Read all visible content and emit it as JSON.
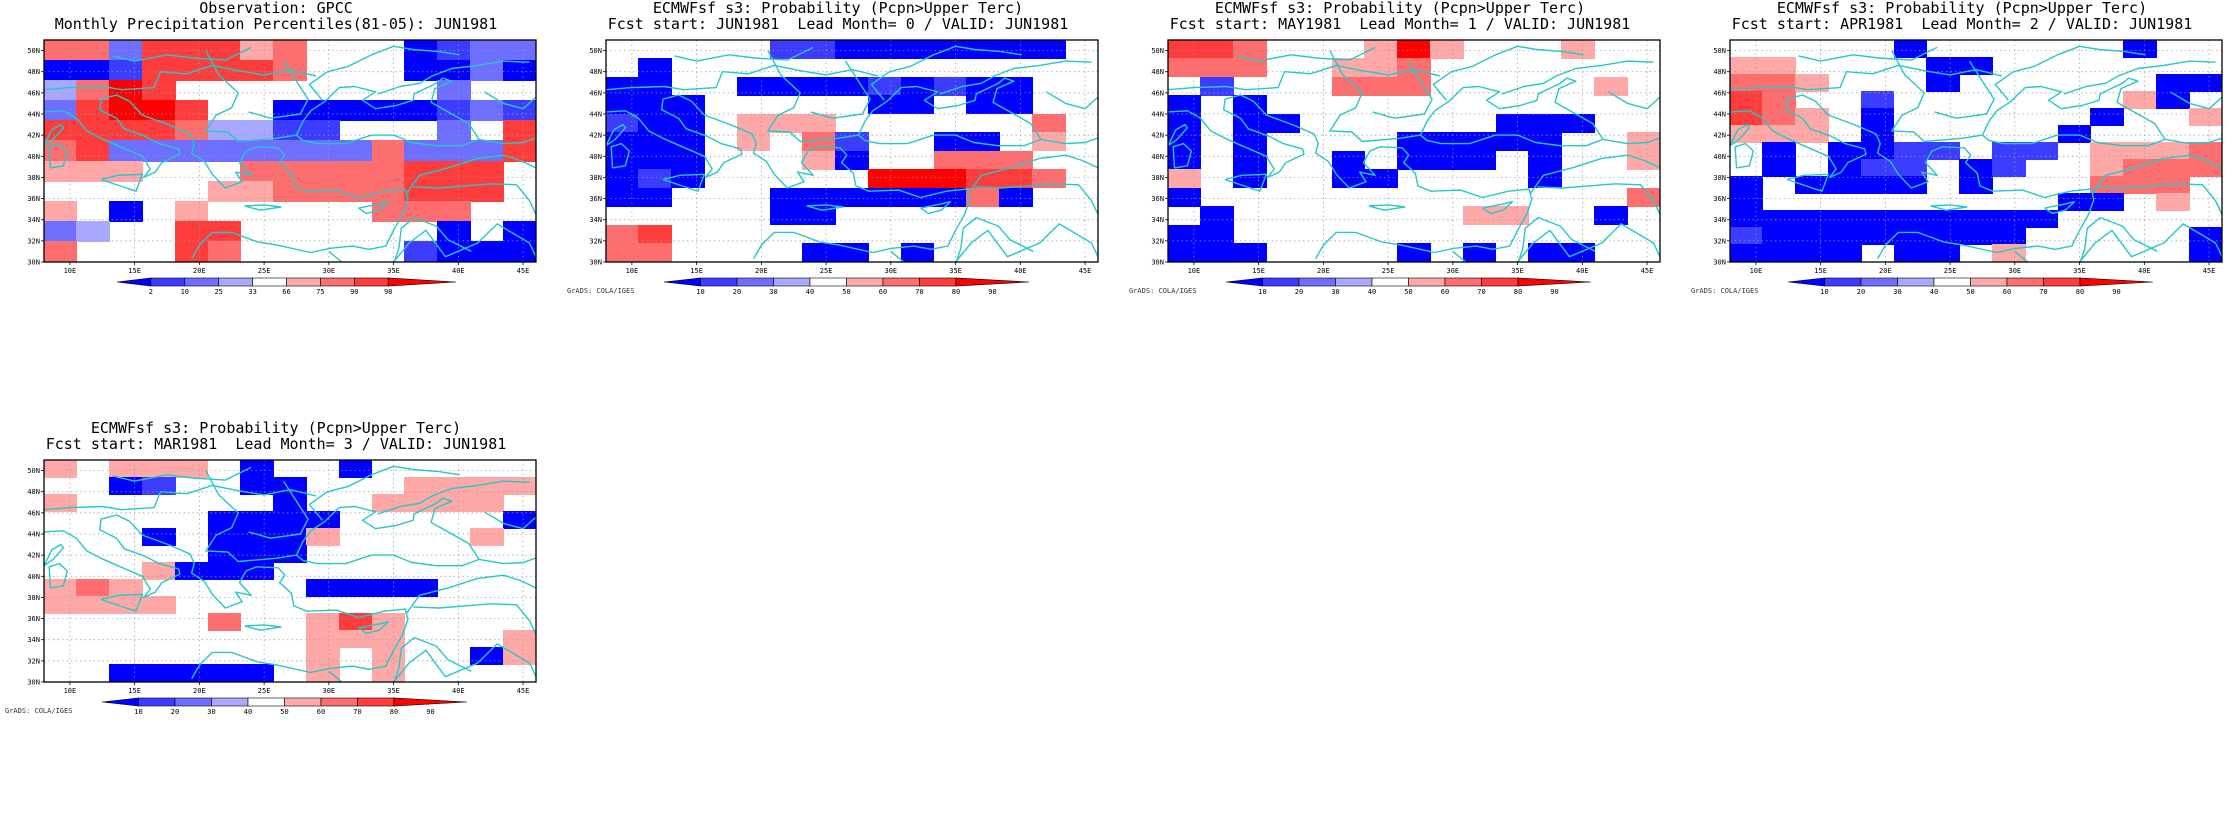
{
  "credit": "GrADS: COLA/IGES",
  "axes": {
    "lon_ticks": [
      "10E",
      "15E",
      "20E",
      "25E",
      "30E",
      "35E",
      "40E",
      "45E"
    ],
    "lat_ticks": [
      "30N",
      "32N",
      "34N",
      "36N",
      "38N",
      "40N",
      "42N",
      "44N",
      "46N",
      "48N",
      "50N"
    ],
    "lon_range": [
      8,
      46
    ],
    "lat_range": [
      30,
      51
    ]
  },
  "colors": {
    "coast": "#25c8c8",
    "grid": "#9a9a9a",
    "blue": [
      "#0000ff",
      "#3c3cff",
      "#6e6eff",
      "#a8a8ff"
    ],
    "red": [
      "#ffa8a8",
      "#ff6e6e",
      "#ff3c3c",
      "#ff0000"
    ]
  },
  "legends": {
    "obs": [
      "2",
      "10",
      "25",
      "33",
      "66",
      "75",
      "90",
      "98"
    ],
    "prob": [
      "10",
      "20",
      "30",
      "40",
      "50",
      "60",
      "70",
      "80",
      "90"
    ]
  },
  "panels": [
    {
      "id": "obs",
      "title1": "Observation: GPCC",
      "title2": "Monthly Precipitation Percentiles(81-05): JUN1981",
      "legend": "obs",
      "credit": false,
      "grid": [
        "r2  r2  b3  r3  r3  r3  r1  r2  .   .   .   b1  b2  b3  b3",
        "b1  b1  b2  r3  r3  r3  r3  r2  .   .   .   b1  b1  b3  b1",
        "b4  r2  r4  r3  .   .   .   .   .   .   .   .   b3  .   .",
        "b3  r3  r4  r4  r3  .   .   b1  b1  b1  b1  b1  b2  b3  b2",
        "r3  r3  r3  r3  r2  b4  b4  b2  b2  .   .   .   b3  .   r3",
        "r2  r3  b3  b3  b3  b3  b3  b3  b3  b3  r2  b3  b3  b3  r3",
        "r1  r1  r1  .   .   .   r2  r2  r2  r2  r2  r3  r3  r3  .",
        ".   .   .   .   .   r1  r1  r2  r2  r2  r2  r3  r3  r3  .",
        "r1  .   b1  .   r1  .   .   .   .   .   r2  r2  r2  .   .",
        "b3  b4  .   .   r3  r3  .   .   .   .   .   .   b1  .   b1",
        "r2  .   .   .   r3  r2  .   .   .   .   .   b2  b1  b1  b1"
      ]
    },
    {
      "id": "lead0",
      "title1": "ECMWFsf s3: Probability (Pcpn>Upper Terc)",
      "title2": "Fcst start: JUN1981  Lead Month= 0 / VALID: JUN1981",
      "legend": "prob",
      "credit": true,
      "grid": [
        ".   .   .   .   .   b2  b2  b1  b1  b1  b1  b1  b1  b1  .",
        ".   b1  .   .   .   .   .   .   .   .   .   .   .   .   .",
        "b1  b1  .   .   b1  b1  b1  b1  b2  b1  b2  b1  b1  .   .",
        "b1  b1  b1  .   .   .   .   .   b1  b1  .   b1  b1  .   .",
        "b2  b1  b1  .   r1  r1  r1  .   .   .   .   .   .   r2  .",
        "b1  b1  b1  .   r1  .   r2  b2  .   .   b1  b1  .   r1  .",
        "b1  b1  b1  .   .   .   r1  b1  .   .   r2  r2  r2  .   .",
        "b1  b2  b1  .   .   .   .   .   r4  r4  r4  r3  r3  r2  .",
        "b1  b1  .   .   .   b1  b1  b1  b1  b1  b1  r2  b1  .   .",
        ".   .   .   .   .   b1  b1  .   .   .   .   .   .   .   .",
        "r2  r3  .   .   .   .   .   .   .   .   .   .   .   .   .",
        "r2  r2  .   .   .   .   b1  b1  .   b1  .   .   .   .   ."
      ]
    },
    {
      "id": "lead1",
      "title1": "ECMWFsf s3: Probability (Pcpn>Upper Terc)",
      "title2": "Fcst start: MAY1981  Lead Month= 1 / VALID: JUN1981",
      "legend": "prob",
      "credit": true,
      "grid": [
        "r3  r3  r2  .   .   .   r1  r4  r1  .   .   .   r1  .   .",
        "r2  r2  r2  .   .   r1  r1  r2  .   .   .   .   .   .   .",
        ".   b2  .   .   .   r2  r2  r2  .   .   .   .   .   r1  .",
        "b1  .   b1  .   .   .   .   .   .   .   .   .   .   .   .",
        "b1  .   b1  b1  .   .   .   .   .   .   b1  b1  b1  .   .",
        "b1  .   b1  .   .   .   .   b1  b1  b1  b1  b1  .   .   r1",
        "b1  .   b1  .   .   b1  .   b1  b1  b1  .   b1  .   .   r1",
        "r1  .   b1  .   .   b1  b1  .   .   .   .   b1  .   .   .",
        "b1  .   .   .   .   .   .   .   .   .   .   .   .   .   r2",
        ".   b1  .   .   .   .   .   .   .   r1  r1  .   .   b1  .",
        "b1  b1  .   .   .   .   .   .   .   .   .   .   .   .   .",
        "b1  b1  b1  .   .   .   .   b1  .   b1  .   b1  b1  .   ."
      ]
    },
    {
      "id": "lead2",
      "title1": "ECMWFsf s3: Probability (Pcpn>Upper Terc)",
      "title2": "Fcst start: APR1981  Lead Month= 2 / VALID: JUN1981",
      "legend": "prob",
      "credit": true,
      "grid": [
        ".   .   .   .   .   b1  .   .   .   .   .   .   b1  .   .",
        "r1  r1  .   .   .   .   b1  b1  .   .   .   .   .   .   .",
        "r2  r2  r1  .   .   .   b1  .   .   .   .   .   .   b1  b1",
        "r3  r2  .   .   b2  .   .   .   .   .   .   .   r1  b1  .",
        "r3  r2  r1  .   b1  .   .   .   .   .   .   b1  .   .   r1",
        "r1  r1  r1  .   b1  .   .   .   .   .   b1  .   .   .   .",
        ".   b1  .   b1  b1  b2  b2  .   b2  b2  .   r1  r1  r1  r2",
        ".   b1  .   b1  b2  b2  .   b1  b2  .   .   r1  r2  r2  r2",
        "b1  .   b1  b1  b1  b1  .   b1  .   .   .   r2  r2  r2  .",
        "b1  .   .   .   .   .   .   .   .   .   b1  b1  .   r1  .",
        "b1  b1  b1  b1  b1  b1  b1  b1  b1  b1  .   .   .   .   .",
        "b2  b1  b1  b1  b1  b1  b1  b1  b1  .   .   .   .   .   b1",
        "b1  b1  b1  b1  .   b1  b1  .   r1  .   .   .   .   .   b1"
      ]
    },
    {
      "id": "lead3",
      "title1": "ECMWFsf s3: Probability (Pcpn>Upper Terc)",
      "title2": "Fcst start: MAR1981  Lead Month= 3 / VALID: JUN1981",
      "legend": "prob",
      "credit": true,
      "grid": [
        "r1  .   r1  r1  r1  .   b1  .   .   b1  .   .   .   .   .",
        ".   .   b1  b2  .   .   b1  b1  .   .   .   r1  r1  r1  r1",
        "r1  .   .   .   .   .   .   b1  .   .   r1  r1  r1  r1  .",
        ".   .   .   .   .   b1  b1  b1  b1  .   .   .   .   .   b1",
        ".   .   .   b1  .   b1  b1  b1  r1  .   .   .   .   r1  .",
        ".   .   .   .   .   b1  b1  b1  .   .   .   .   .   .   .",
        ".   .   .   r1  b1  b1  b1  .   .   .   .   .   .   .   .",
        "r1  r2  r1  .   .   .   .   .   b1  b1  b1  b1  .   .   .",
        "r1  r1  r1  r1  .   .   .   .   .   .   .   .   .   .   .",
        ".   .   .   .   .   r2  .   .   r1  r3  r1  .   .   .   .",
        ".   .   .   .   .   .   .   .   r1  r1  r1  .   .   .   r1",
        ".   .   .   .   .   .   .   .   r1  .   r1  .   .   b1  r1",
        ".   .   b1  b1  b1  b1  b1  .   r1  .   r1  .   .   .   ."
      ]
    }
  ]
}
